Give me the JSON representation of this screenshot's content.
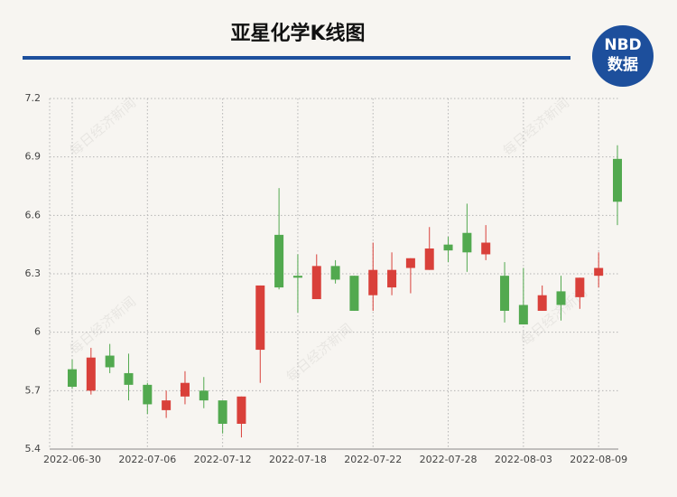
{
  "header": {
    "title": "亚星化学K线图"
  },
  "logo": {
    "top": "NBD",
    "bottom": "数据"
  },
  "watermark": "每日经济新闻",
  "chart_data": {
    "type": "candlestick",
    "categories": [
      "2022-06-30",
      null,
      null,
      null,
      "2022-07-06",
      null,
      null,
      null,
      "2022-07-12",
      null,
      null,
      null,
      "2022-07-18",
      null,
      null,
      null,
      "2022-07-22",
      null,
      null,
      null,
      "2022-07-28",
      null,
      null,
      null,
      "2022-08-03",
      null,
      null,
      null,
      "2022-08-09",
      null
    ],
    "open": [
      5.81,
      5.7,
      5.88,
      5.79,
      5.73,
      5.6,
      5.67,
      5.7,
      5.65,
      5.53,
      5.91,
      6.5,
      6.29,
      6.17,
      6.34,
      6.29,
      6.19,
      6.23,
      6.33,
      6.32,
      6.45,
      6.51,
      6.4,
      6.29,
      6.14,
      6.11,
      6.21,
      6.18,
      6.29,
      6.89
    ],
    "high": [
      5.86,
      5.92,
      5.94,
      5.89,
      5.74,
      5.7,
      5.8,
      5.77,
      5.65,
      5.67,
      6.24,
      6.74,
      6.4,
      6.4,
      6.37,
      6.29,
      6.46,
      6.41,
      6.38,
      6.54,
      6.49,
      6.66,
      6.55,
      6.36,
      6.33,
      6.24,
      6.29,
      6.28,
      6.41,
      6.96
    ],
    "low": [
      5.71,
      5.68,
      5.79,
      5.65,
      5.58,
      5.56,
      5.63,
      5.61,
      5.48,
      5.46,
      5.74,
      6.22,
      6.1,
      6.17,
      6.25,
      6.11,
      6.11,
      6.19,
      6.2,
      6.32,
      6.36,
      6.31,
      6.37,
      6.05,
      6.04,
      6.11,
      6.06,
      6.12,
      6.23,
      6.55
    ],
    "close": [
      5.72,
      5.87,
      5.82,
      5.73,
      5.63,
      5.65,
      5.74,
      5.65,
      5.53,
      5.67,
      6.24,
      6.23,
      6.28,
      6.34,
      6.27,
      6.11,
      6.32,
      6.32,
      6.38,
      6.43,
      6.42,
      6.41,
      6.46,
      6.11,
      6.04,
      6.19,
      6.14,
      6.28,
      6.33,
      6.67
    ],
    "up_color": "#d9403a",
    "down_color": "#52a94f",
    "ylim": [
      5.4,
      7.2
    ],
    "yticks": [
      5.4,
      5.7,
      6,
      6.3,
      6.6,
      6.9,
      7.2
    ],
    "grid": true
  }
}
